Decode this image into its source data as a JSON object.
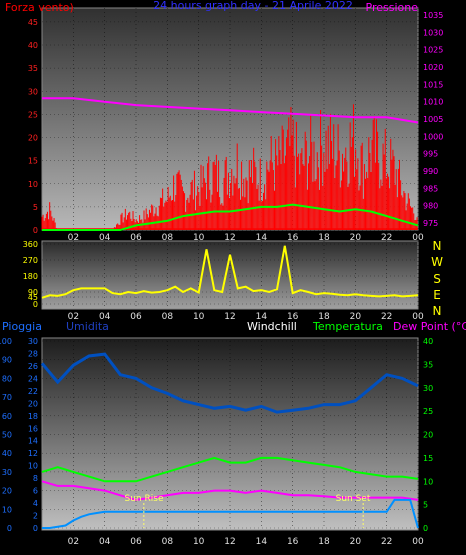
{
  "header": {
    "left_title": "Forza vento)",
    "center_title": "24 hours graph day - 21 Aprile 2022",
    "right_title": "Pressione"
  },
  "middle": {
    "right_letters": [
      "N",
      "W",
      "S",
      "E",
      "N"
    ]
  },
  "bottom_header": {
    "pioggia": "Pioggia",
    "umidita": "Umidita",
    "windchill": "Windchill",
    "temperatura": "Temperatura",
    "dewpoint": "Dew Point (°C)"
  },
  "annotations": {
    "sunrise": "Sun Rise",
    "sunset": "Sun Set"
  },
  "colors": {
    "wind": "#ff0000",
    "pressure": "#ff00ff",
    "gust": "#00ff00",
    "direction": "#ffff00",
    "humidity": "#0050c0",
    "temperature": "#00ff00",
    "dewpoint": "#ff00ff",
    "windchill": "#ffffff",
    "rain": "#0090ff",
    "sun": "#ffff66"
  },
  "chart_data": [
    {
      "type": "line",
      "panel": "wind-pressure",
      "x_ticks": [
        "02",
        "04",
        "06",
        "08",
        "10",
        "12",
        "14",
        "16",
        "18",
        "20",
        "22",
        "00"
      ],
      "y_left_ticks": [
        "0",
        "5",
        "10",
        "15",
        "20",
        "25",
        "30",
        "35",
        "40",
        "45"
      ],
      "y_right_ticks": [
        "975",
        "980",
        "985",
        "990",
        "995",
        "1000",
        "1005",
        "1010",
        "1015",
        "1020",
        "1025",
        "1030",
        "1035"
      ],
      "ylim_left": [
        0,
        48
      ],
      "ylim_right": [
        973,
        1037
      ],
      "series": [
        {
          "axis": "left",
          "x": [
            0,
            0.5,
            1,
            1.5,
            2,
            2.5,
            3,
            3.5,
            4,
            4.5,
            5,
            5.5,
            6,
            6.5,
            7,
            7.5,
            8,
            8.5,
            9,
            9.5,
            10,
            10.5,
            11,
            11.5,
            12,
            12.5,
            13,
            13.5,
            14,
            14.5,
            15,
            15.5,
            16,
            16.5,
            17,
            17.5,
            18,
            18.5,
            19,
            19.5,
            20,
            20.5,
            21,
            21.5,
            22,
            22.5,
            23,
            23.5,
            24
          ],
          "values": [
            4,
            6,
            0,
            0,
            0,
            0,
            0,
            0,
            0,
            0,
            3,
            5,
            3,
            4,
            6,
            8,
            9,
            14,
            10,
            12,
            12,
            15,
            17,
            14,
            18,
            20,
            16,
            17,
            15,
            20,
            19,
            22,
            25,
            18,
            23,
            22,
            26,
            24,
            22,
            25,
            27,
            18,
            24,
            22,
            20,
            18,
            12,
            7,
            4
          ]
        },
        {
          "axis": "left",
          "x": [
            0,
            1,
            2,
            3,
            4,
            5,
            6,
            7,
            8,
            9,
            10,
            11,
            12,
            13,
            14,
            15,
            16,
            17,
            18,
            19,
            20,
            21,
            22,
            23,
            24
          ],
          "values": [
            0,
            0,
            0,
            0,
            0,
            0,
            1,
            1.5,
            2,
            3,
            3.5,
            4,
            4,
            4.5,
            5,
            5,
            5.5,
            5,
            4.5,
            4,
            4.5,
            4,
            3,
            2,
            1
          ]
        },
        {
          "axis": "right",
          "x": [
            0,
            2,
            4,
            6,
            8,
            10,
            12,
            14,
            16,
            18,
            20,
            22,
            24
          ],
          "values": [
            1011,
            1011,
            1010,
            1009,
            1008.5,
            1008,
            1007.5,
            1007,
            1006.5,
            1006,
            1005.5,
            1005.5,
            1004
          ]
        }
      ]
    },
    {
      "type": "line",
      "panel": "wind-direction",
      "x_ticks": [
        "02",
        "04",
        "06",
        "08",
        "10",
        "12",
        "14",
        "16",
        "18",
        "20",
        "22",
        "00"
      ],
      "y_ticks": [
        "0",
        "45",
        "90",
        "180",
        "270",
        "360"
      ],
      "ylim": [
        0,
        360
      ],
      "series": [
        {
          "x": [
            0,
            0.5,
            1,
            1.5,
            2,
            2.5,
            3,
            3.5,
            4,
            4.5,
            5,
            5.5,
            6,
            6.5,
            7,
            7.5,
            8,
            8.5,
            9,
            9.5,
            10,
            10.5,
            11,
            11.5,
            12,
            12.5,
            13,
            13.5,
            14,
            14.5,
            15,
            15.5,
            16,
            16.5,
            17,
            17.5,
            18,
            18.5,
            19,
            19.5,
            20,
            20.5,
            21,
            21.5,
            22,
            22.5,
            23,
            23.5,
            24
          ],
          "values": [
            40,
            60,
            55,
            70,
            100,
            110,
            110,
            110,
            110,
            80,
            70,
            90,
            80,
            95,
            85,
            90,
            100,
            120,
            90,
            110,
            85,
            330,
            100,
            90,
            300,
            110,
            120,
            95,
            100,
            90,
            105,
            350,
            80,
            100,
            90,
            70,
            80,
            75,
            65,
            60,
            70,
            60,
            55,
            50,
            55,
            60,
            50,
            55,
            60
          ]
        }
      ]
    },
    {
      "type": "line",
      "panel": "rain-humidity-temp",
      "x_ticks": [
        "02",
        "04",
        "06",
        "08",
        "10",
        "12",
        "14",
        "16",
        "18",
        "20",
        "22",
        "00"
      ],
      "y_left_outer_ticks": [
        "0",
        "10",
        "20",
        "30",
        "40",
        "50",
        "60",
        "70",
        "80",
        "90",
        "100"
      ],
      "y_left_inner_ticks": [
        "0",
        "2",
        "4",
        "6",
        "8",
        "10",
        "12",
        "14",
        "16",
        "18",
        "20",
        "22",
        "24",
        "26",
        "28",
        "30"
      ],
      "y_right_ticks": [
        "0",
        "5",
        "10",
        "15",
        "20",
        "25",
        "30",
        "35",
        "40"
      ],
      "series": [
        {
          "axis": "left-outer",
          "x": [
            0,
            1,
            2,
            3,
            4,
            5,
            6,
            7,
            8,
            9,
            10,
            11,
            12,
            13,
            14,
            15,
            16,
            17,
            18,
            19,
            20,
            21,
            22,
            23,
            24
          ],
          "values": [
            88,
            78,
            87,
            92,
            93,
            82,
            80,
            75,
            72,
            68,
            66,
            64,
            65,
            63,
            65,
            62,
            63,
            64,
            66,
            66,
            68,
            75,
            82,
            80,
            76
          ]
        },
        {
          "axis": "right",
          "x": [
            0,
            1,
            2,
            3,
            4,
            5,
            6,
            7,
            8,
            9,
            10,
            11,
            12,
            13,
            14,
            15,
            16,
            17,
            18,
            19,
            20,
            21,
            22,
            23,
            24
          ],
          "values": [
            12,
            13,
            12,
            11,
            10,
            10,
            10,
            11,
            12,
            13,
            14,
            15,
            14,
            14,
            15,
            15,
            14.5,
            14,
            13.5,
            13,
            12,
            11.5,
            11,
            11,
            10.5
          ]
        },
        {
          "axis": "right",
          "x": [
            0,
            1,
            2,
            3,
            4,
            5,
            6,
            7,
            8,
            9,
            10,
            11,
            12,
            13,
            14,
            15,
            16,
            17,
            18,
            19,
            20,
            21,
            22,
            23,
            24
          ],
          "values": [
            10,
            9,
            9,
            8.5,
            8,
            7,
            6,
            6.5,
            7,
            7.5,
            7.5,
            8,
            8,
            7.5,
            8,
            7.5,
            7,
            7,
            6.8,
            6.5,
            6.5,
            6.5,
            6.5,
            6.5,
            6
          ]
        },
        {
          "axis": "left-inner",
          "x": [
            0,
            0.5,
            1,
            1.5,
            2,
            2.5,
            3,
            3.5,
            4,
            5,
            6,
            8,
            10,
            12,
            14,
            16,
            18,
            20,
            22,
            22.5,
            23,
            23.5,
            24
          ],
          "values": [
            0,
            0,
            0.2,
            0.4,
            1.2,
            1.8,
            2.2,
            2.4,
            2.6,
            2.6,
            2.6,
            2.6,
            2.6,
            2.6,
            2.6,
            2.6,
            2.6,
            2.6,
            2.6,
            4.5,
            4.5,
            4.5,
            0
          ]
        }
      ],
      "sunrise_hour": 6.5,
      "sunset_hour": 20.5
    }
  ]
}
